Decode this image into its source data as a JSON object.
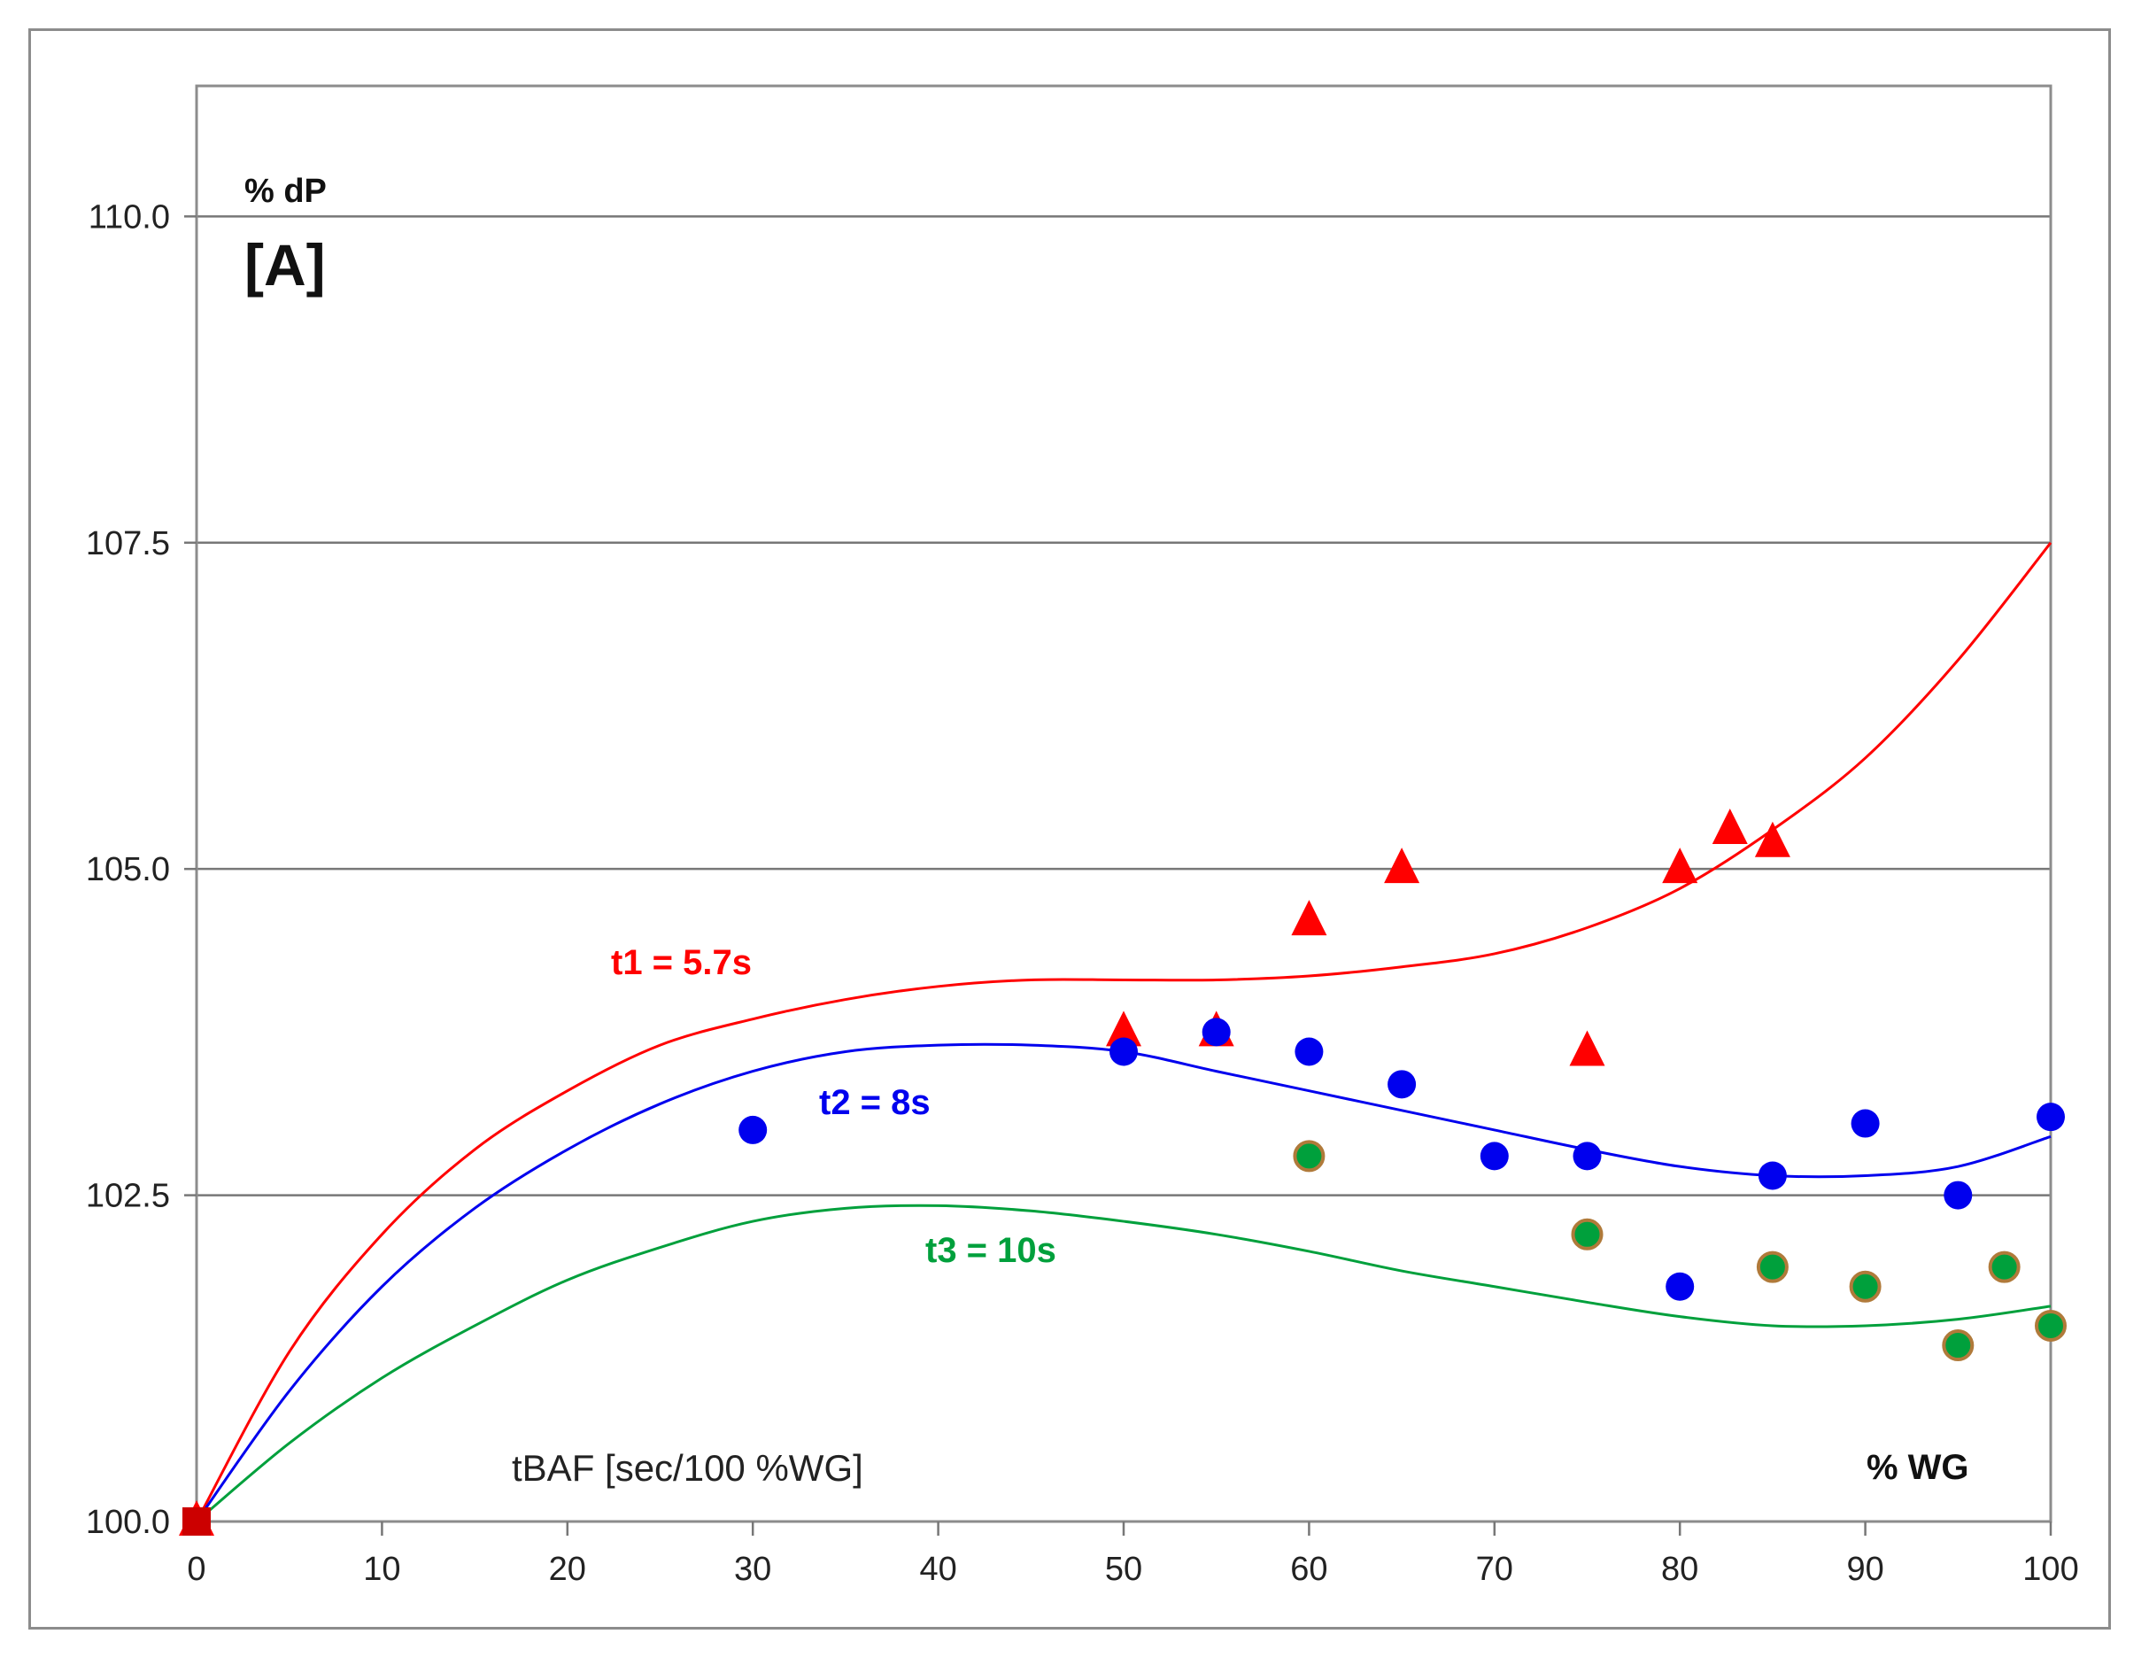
{
  "chart_data": {
    "type": "scatter",
    "title": "",
    "xlabel": "% WG",
    "ylabel": "% dP",
    "panel_label": "[A]",
    "x_note": "tBAF [sec/100 %WG]",
    "xlim": [
      0,
      100
    ],
    "ylim": [
      100,
      111
    ],
    "x_ticks": [
      0,
      10,
      20,
      30,
      40,
      50,
      60,
      70,
      80,
      90,
      100
    ],
    "x_tick_labels": [
      "0",
      "10",
      "20",
      "30",
      "40",
      "50",
      "60",
      "70",
      "80",
      "90",
      "100"
    ],
    "y_ticks": [
      100,
      102.5,
      105,
      107.5,
      110
    ],
    "y_tick_labels": [
      "100.0",
      "102.5",
      "105.0",
      "107.5",
      "110.0"
    ],
    "grid": "horizontal",
    "series": [
      {
        "name": "t1 = 5.7s",
        "color": "#ff0000",
        "marker": "triangle",
        "points": [
          [
            0,
            100
          ],
          [
            50,
            103.75
          ],
          [
            55,
            103.75
          ],
          [
            60,
            104.6
          ],
          [
            65,
            105
          ],
          [
            75,
            103.6
          ],
          [
            80,
            105
          ],
          [
            82.7,
            105.3
          ],
          [
            85,
            105.2
          ]
        ],
        "fit": [
          [
            0,
            100
          ],
          [
            5,
            101.3
          ],
          [
            10,
            102.2
          ],
          [
            15,
            102.85
          ],
          [
            20,
            103.3
          ],
          [
            25,
            103.65
          ],
          [
            30,
            103.85
          ],
          [
            35,
            104.0
          ],
          [
            40,
            104.1
          ],
          [
            45,
            104.15
          ],
          [
            50,
            104.15
          ],
          [
            55,
            104.15
          ],
          [
            60,
            104.18
          ],
          [
            65,
            104.25
          ],
          [
            70,
            104.35
          ],
          [
            75,
            104.55
          ],
          [
            80,
            104.85
          ],
          [
            85,
            105.3
          ],
          [
            90,
            105.85
          ],
          [
            95,
            106.6
          ],
          [
            100,
            107.5
          ]
        ]
      },
      {
        "name": "t2 = 8s",
        "color": "#0000ee",
        "marker": "circle",
        "points": [
          [
            30,
            103
          ],
          [
            50,
            103.6
          ],
          [
            55,
            103.75
          ],
          [
            60,
            103.6
          ],
          [
            65,
            103.35
          ],
          [
            70,
            102.8
          ],
          [
            75,
            102.8
          ],
          [
            80,
            101.8
          ],
          [
            85,
            102.65
          ],
          [
            90,
            103.05
          ],
          [
            95,
            102.5
          ],
          [
            100,
            103.1
          ]
        ],
        "fit": [
          [
            0,
            100
          ],
          [
            5,
            101.0
          ],
          [
            10,
            101.8
          ],
          [
            15,
            102.4
          ],
          [
            20,
            102.85
          ],
          [
            25,
            103.2
          ],
          [
            30,
            103.45
          ],
          [
            35,
            103.6
          ],
          [
            40,
            103.65
          ],
          [
            45,
            103.65
          ],
          [
            50,
            103.6
          ],
          [
            55,
            103.45
          ],
          [
            60,
            103.3
          ],
          [
            65,
            103.15
          ],
          [
            70,
            103.0
          ],
          [
            75,
            102.85
          ],
          [
            80,
            102.72
          ],
          [
            85,
            102.65
          ],
          [
            90,
            102.65
          ],
          [
            95,
            102.72
          ],
          [
            100,
            102.95
          ]
        ]
      },
      {
        "name": "t3 = 10s",
        "color": "#00a03c",
        "marker": "circle-brown-edge",
        "points": [
          [
            60,
            102.8
          ],
          [
            75,
            102.2
          ],
          [
            85,
            101.95
          ],
          [
            90,
            101.8
          ],
          [
            95,
            101.35
          ],
          [
            97.5,
            101.95
          ],
          [
            100,
            101.5
          ]
        ],
        "fit": [
          [
            0,
            100
          ],
          [
            5,
            100.6
          ],
          [
            10,
            101.1
          ],
          [
            15,
            101.5
          ],
          [
            20,
            101.85
          ],
          [
            25,
            102.1
          ],
          [
            30,
            102.3
          ],
          [
            35,
            102.4
          ],
          [
            40,
            102.42
          ],
          [
            45,
            102.38
          ],
          [
            50,
            102.3
          ],
          [
            55,
            102.2
          ],
          [
            60,
            102.07
          ],
          [
            65,
            101.92
          ],
          [
            70,
            101.8
          ],
          [
            75,
            101.68
          ],
          [
            80,
            101.57
          ],
          [
            85,
            101.5
          ],
          [
            90,
            101.5
          ],
          [
            95,
            101.55
          ],
          [
            100,
            101.65
          ]
        ]
      }
    ],
    "origin_marker": {
      "x": 0,
      "y": 100,
      "color": "#cc0000",
      "shape": "square"
    }
  }
}
